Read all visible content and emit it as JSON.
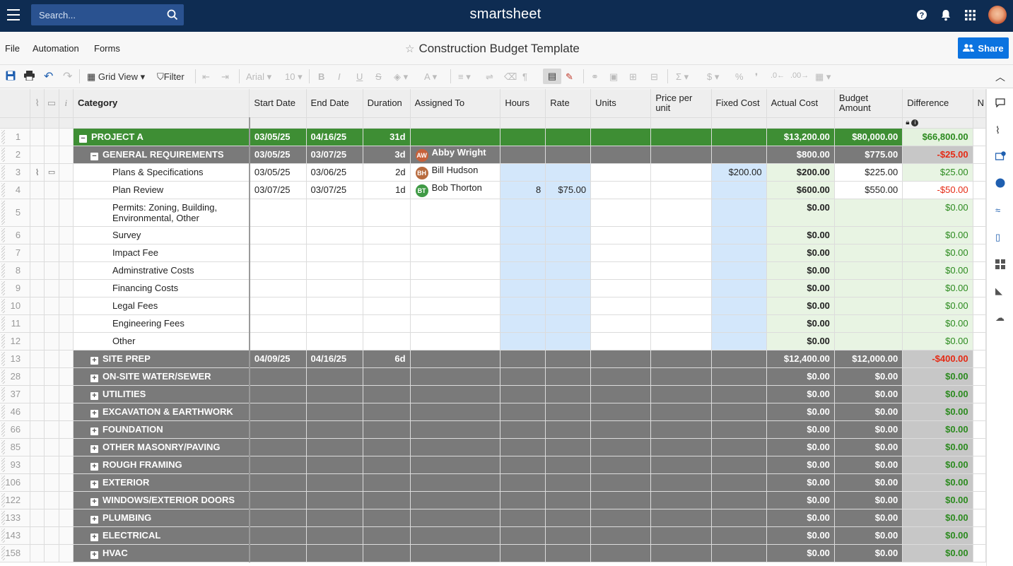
{
  "topbar": {
    "search_placeholder": "Search...",
    "logo": "smartsheet"
  },
  "menubar": {
    "file": "File",
    "automation": "Automation",
    "forms": "Forms",
    "title": "Construction Budget Template",
    "share": "Share"
  },
  "toolbar": {
    "grid_view": "Grid View",
    "filter": "Filter",
    "font": "Arial",
    "font_size": "10"
  },
  "columns": {
    "category": "Category",
    "start": "Start Date",
    "end": "End Date",
    "duration": "Duration",
    "assigned": "Assigned To",
    "hours": "Hours",
    "rate": "Rate",
    "units": "Units",
    "price": "Price per unit",
    "fixed": "Fixed Cost",
    "actual": "Actual Cost",
    "budget": "Budget Amount",
    "difference": "Difference",
    "next": "N"
  },
  "rows": [
    {
      "n": "1",
      "cat": "PROJECT A",
      "start": "03/05/25",
      "end": "04/16/25",
      "dur": "31d",
      "actual": "$13,200.00",
      "budget": "$80,000.00",
      "diff": "$66,800.00"
    },
    {
      "n": "2",
      "cat": "GENERAL REQUIREMENTS",
      "start": "03/05/25",
      "end": "03/07/25",
      "dur": "3d",
      "assigned": "Abby Wright",
      "initials": "AW",
      "actual": "$800.00",
      "budget": "$775.00",
      "diff": "-$25.00"
    },
    {
      "n": "3",
      "cat": "Plans & Specifications",
      "start": "03/05/25",
      "end": "03/06/25",
      "dur": "2d",
      "assigned": "Bill Hudson",
      "initials": "BH",
      "fixed": "$200.00",
      "actual": "$200.00",
      "budget": "$225.00",
      "diff": "$25.00"
    },
    {
      "n": "4",
      "cat": "Plan Review",
      "start": "03/07/25",
      "end": "03/07/25",
      "dur": "1d",
      "assigned": "Bob Thorton",
      "initials": "BT",
      "hours": "8",
      "rate": "$75.00",
      "actual": "$600.00",
      "budget": "$550.00",
      "diff": "-$50.00"
    },
    {
      "n": "5",
      "cat1": "Permits: Zoning, Building,",
      "cat2": "Environmental, Other",
      "actual": "$0.00",
      "diff": "$0.00"
    },
    {
      "n": "6",
      "cat": "Survey",
      "actual": "$0.00",
      "diff": "$0.00"
    },
    {
      "n": "7",
      "cat": "Impact Fee",
      "actual": "$0.00",
      "diff": "$0.00"
    },
    {
      "n": "8",
      "cat": "Adminstrative Costs",
      "actual": "$0.00",
      "diff": "$0.00"
    },
    {
      "n": "9",
      "cat": "Financing Costs",
      "actual": "$0.00",
      "diff": "$0.00"
    },
    {
      "n": "10",
      "cat": "Legal Fees",
      "actual": "$0.00",
      "diff": "$0.00"
    },
    {
      "n": "11",
      "cat": "Engineering Fees",
      "actual": "$0.00",
      "diff": "$0.00"
    },
    {
      "n": "12",
      "cat": "Other",
      "actual": "$0.00",
      "diff": "$0.00"
    },
    {
      "n": "13",
      "cat": "SITE PREP",
      "start": "04/09/25",
      "end": "04/16/25",
      "dur": "6d",
      "actual": "$12,400.00",
      "budget": "$12,000.00",
      "diff": "-$400.00"
    },
    {
      "n": "28",
      "cat": "ON-SITE WATER/SEWER",
      "actual": "$0.00",
      "budget": "$0.00",
      "diff": "$0.00"
    },
    {
      "n": "37",
      "cat": "UTILITIES",
      "actual": "$0.00",
      "budget": "$0.00",
      "diff": "$0.00"
    },
    {
      "n": "46",
      "cat": "EXCAVATION & EARTHWORK",
      "actual": "$0.00",
      "budget": "$0.00",
      "diff": "$0.00"
    },
    {
      "n": "66",
      "cat": "FOUNDATION",
      "actual": "$0.00",
      "budget": "$0.00",
      "diff": "$0.00"
    },
    {
      "n": "85",
      "cat": "OTHER MASONRY/PAVING",
      "actual": "$0.00",
      "budget": "$0.00",
      "diff": "$0.00"
    },
    {
      "n": "93",
      "cat": "ROUGH FRAMING",
      "actual": "$0.00",
      "budget": "$0.00",
      "diff": "$0.00"
    },
    {
      "n": "106",
      "cat": "EXTERIOR",
      "actual": "$0.00",
      "budget": "$0.00",
      "diff": "$0.00"
    },
    {
      "n": "122",
      "cat": "WINDOWS/EXTERIOR DOORS",
      "actual": "$0.00",
      "budget": "$0.00",
      "diff": "$0.00"
    },
    {
      "n": "133",
      "cat": "PLUMBING",
      "actual": "$0.00",
      "budget": "$0.00",
      "diff": "$0.00"
    },
    {
      "n": "143",
      "cat": "ELECTRICAL",
      "actual": "$0.00",
      "budget": "$0.00",
      "diff": "$0.00"
    },
    {
      "n": "158",
      "cat": "HVAC",
      "actual": "$0.00",
      "budget": "$0.00",
      "diff": "$0.00"
    }
  ],
  "colors": {
    "topbar": "#0e2c52",
    "project_row": "#3e8e34",
    "section_row": "#7a7a7a",
    "share": "#0b73e0",
    "negative": "#e52a14",
    "positive": "#2b8a1e"
  },
  "icons": [
    "menu-icon",
    "search-icon",
    "help-icon",
    "bell-icon",
    "apps-icon",
    "star-icon",
    "save-icon",
    "print-icon",
    "undo-icon",
    "redo-icon",
    "comment-icon",
    "attachment-icon"
  ]
}
